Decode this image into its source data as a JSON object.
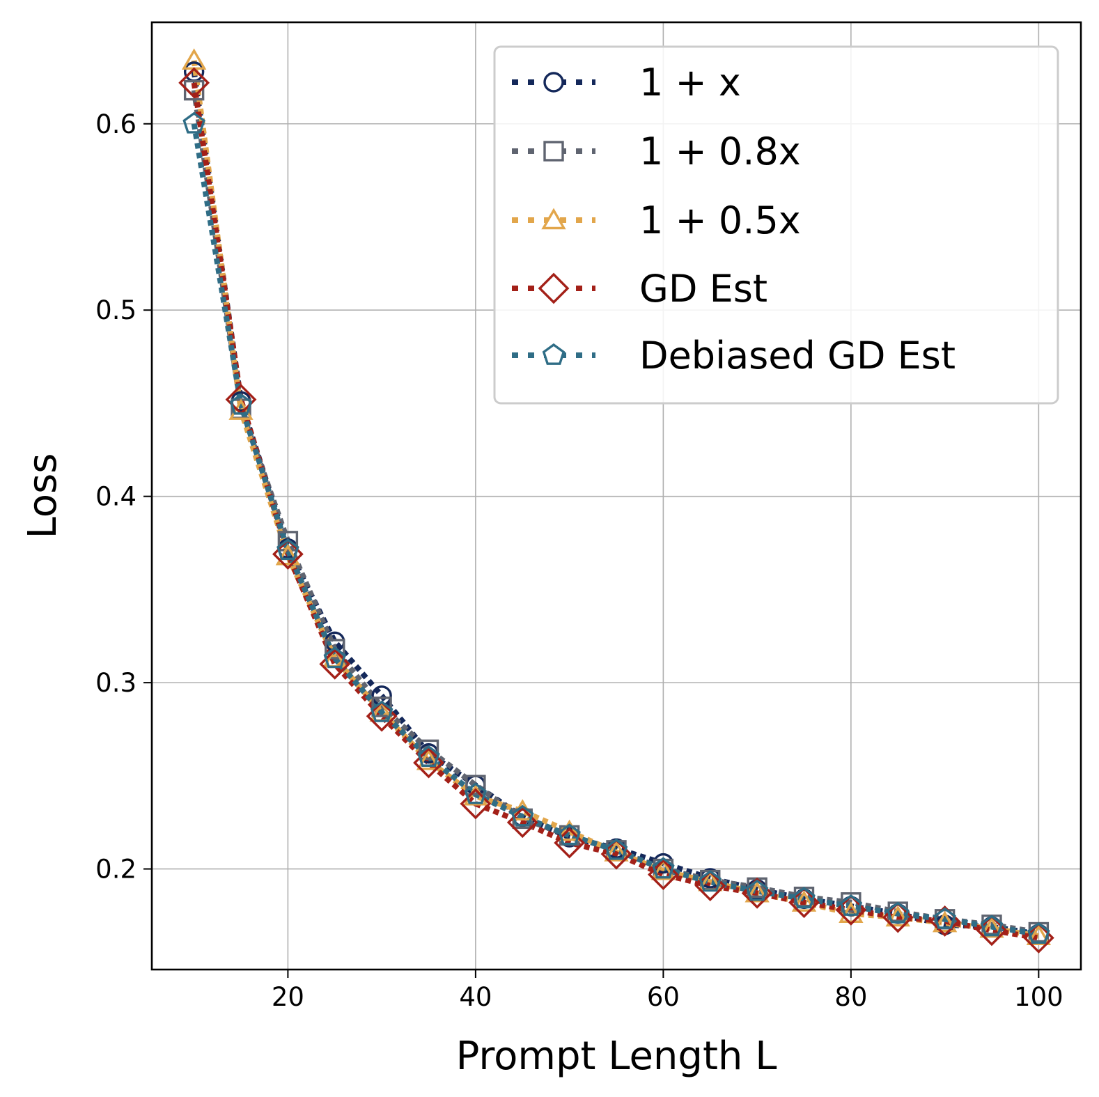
{
  "chart_data": {
    "type": "line",
    "xlabel": "Prompt Length L",
    "ylabel": "Loss",
    "xlim": [
      5.5,
      104.5
    ],
    "ylim": [
      0.146,
      0.6545
    ],
    "x_ticks": [
      20,
      40,
      60,
      80,
      100
    ],
    "y_ticks": [
      0.2,
      0.3,
      0.4,
      0.5,
      0.6
    ],
    "x_tick_labels": [
      "20",
      "40",
      "60",
      "80",
      "100"
    ],
    "y_tick_labels": [
      "0.2",
      "0.3",
      "0.4",
      "0.5",
      "0.6"
    ],
    "grid": true,
    "legend_position": "top-right",
    "x": [
      10,
      15,
      20,
      25,
      30,
      35,
      40,
      45,
      50,
      55,
      60,
      65,
      70,
      75,
      80,
      85,
      90,
      95,
      100
    ],
    "series": [
      {
        "name": "1 + x",
        "color": "#14285a",
        "marker": "circle",
        "values": [
          0.628,
          0.451,
          0.372,
          0.322,
          0.293,
          0.262,
          0.245,
          0.228,
          0.217,
          0.211,
          0.203,
          0.195,
          0.189,
          0.184,
          0.18,
          0.176,
          0.17,
          0.169,
          0.165
        ]
      },
      {
        "name": "1 + 0.8x",
        "color": "#5f6470",
        "marker": "square",
        "values": [
          0.618,
          0.447,
          0.376,
          0.318,
          0.287,
          0.264,
          0.245,
          0.227,
          0.218,
          0.21,
          0.2,
          0.194,
          0.19,
          0.185,
          0.182,
          0.177,
          0.173,
          0.17,
          0.166
        ]
      },
      {
        "name": "1 + 0.5x",
        "color": "#e2a64b",
        "marker": "triangle",
        "values": [
          0.634,
          0.446,
          0.368,
          0.313,
          0.284,
          0.258,
          0.239,
          0.231,
          0.22,
          0.209,
          0.199,
          0.193,
          0.187,
          0.182,
          0.176,
          0.174,
          0.171,
          0.168,
          0.164
        ]
      },
      {
        "name": "GD Est",
        "color": "#a32018",
        "marker": "diamond",
        "values": [
          0.622,
          0.452,
          0.369,
          0.31,
          0.282,
          0.257,
          0.235,
          0.225,
          0.214,
          0.208,
          0.197,
          0.191,
          0.187,
          0.182,
          0.178,
          0.174,
          0.172,
          0.167,
          0.163
        ]
      },
      {
        "name": "Debiased GD Est",
        "color": "#2f6d86",
        "marker": "pentagon",
        "values": [
          0.6,
          0.449,
          0.371,
          0.313,
          0.284,
          0.26,
          0.24,
          0.228,
          0.218,
          0.21,
          0.2,
          0.193,
          0.188,
          0.184,
          0.18,
          0.176,
          0.173,
          0.169,
          0.165
        ]
      }
    ]
  }
}
